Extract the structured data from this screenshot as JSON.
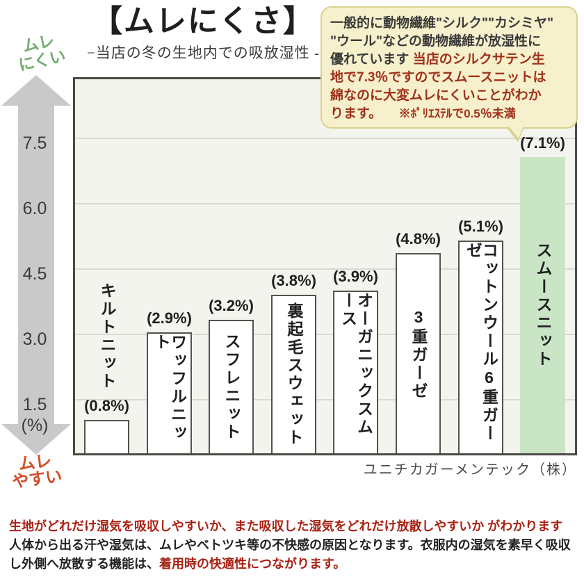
{
  "header": {
    "title": "【ムレにくさ】",
    "subtitle": "−当店の冬の生地内での吸放湿性 -"
  },
  "callout": {
    "lines": [
      [
        {
          "text": "一般的に動物繊維\"シルク\"\"カシミヤ\"",
          "color": "dark"
        }
      ],
      [
        {
          "text": "\"ウール\"などの動物繊維が放湿性に",
          "color": "dark"
        }
      ],
      [
        {
          "text": "優れています ",
          "color": "dark"
        },
        {
          "text": "当店のシルクサテン生",
          "color": "red"
        }
      ],
      [
        {
          "text": "地で7.3％ですのでスムースニットは",
          "color": "red"
        }
      ],
      [
        {
          "text": "綿なのに大変ムレにくいことがわか",
          "color": "red"
        }
      ],
      [
        {
          "text": "ります。",
          "color": "red"
        },
        {
          "text": "　　※ﾎﾟﾘｴｽﾃﾙで0.5％未満",
          "color": "red",
          "small": true
        }
      ]
    ]
  },
  "axis": {
    "top_label_line1": "ムレ",
    "top_label_line2": "にくい",
    "bottom_label_line1": "ムレ",
    "bottom_label_line2": "やすい",
    "unit_label": "(%)"
  },
  "chart_data": {
    "type": "bar",
    "title": "【ムレにくさ】",
    "subtitle": "−当店の冬の生地内での吸放湿性 -",
    "categories": [
      "キルトニット",
      "ワッフルニット",
      "スフレニット",
      "裏起毛スウェット",
      "オーガニックスムース",
      "3重ガーゼ",
      "コットンウール6重ガーゼ",
      "スムースニット"
    ],
    "values": [
      0.8,
      2.9,
      3.2,
      3.8,
      3.9,
      4.8,
      5.1,
      7.1
    ],
    "value_labels": [
      "(0.8%)",
      "(2.9%)",
      "(3.2%)",
      "(3.8%)",
      "(3.9%)",
      "(4.8%)",
      "(5.1%)",
      "(7.1%)"
    ],
    "highlight_index": 7,
    "highlight_color": "#c9e5c6",
    "bar_color": "#ffffff",
    "yticks": [
      7.5,
      6.0,
      4.5,
      3.0,
      1.5
    ],
    "ylim": [
      0,
      9
    ],
    "unit": "%",
    "grid": "horizontal"
  },
  "source": "ユニチカガーメンテック（株）",
  "footer": {
    "lines": [
      [
        {
          "text": "生地がどれだけ湿気を吸収しやすいか、また吸収した湿気をどれだけ放散しやすいか がわかります",
          "color": "red"
        }
      ],
      [
        {
          "text": "人体から出る汗や湿気は、ムレやベトツキ等の不快感の原因となります。衣服内の湿気を素早く吸収",
          "color": "dark"
        }
      ],
      [
        {
          "text": "し外側へ放散する機能は、",
          "color": "dark"
        },
        {
          "text": "着用時の快適性につながります。",
          "color": "red"
        }
      ]
    ]
  },
  "colors": {
    "accent_green_text": "#72ae6e",
    "accent_orange_text": "#cf4f28",
    "arrow_gray": "#c9c9c9",
    "plot_background": "#f4f4ef",
    "callout_background": "#f6f0cc",
    "callout_border": "#d9d190",
    "callout_red_text": "#a03019",
    "footer_red_text": "#a82113"
  }
}
